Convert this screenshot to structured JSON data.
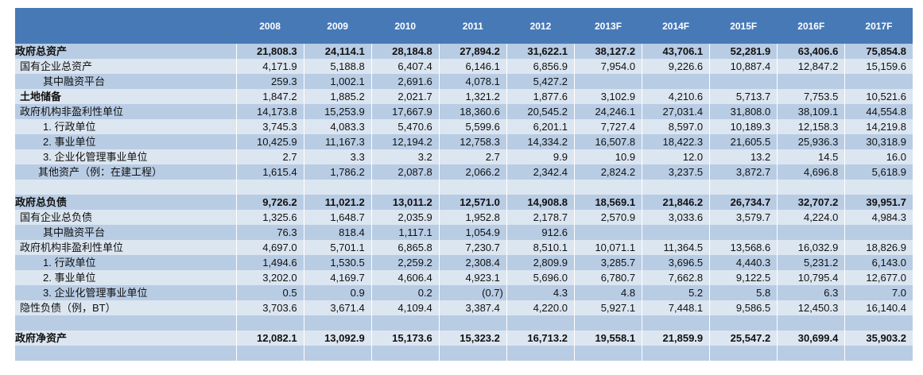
{
  "table": {
    "columns": [
      "2008",
      "2009",
      "2010",
      "2011",
      "2012",
      "2013F",
      "2014F",
      "2015F",
      "2016F",
      "2017F"
    ],
    "rows": [
      {
        "label": "政府总资产",
        "bold": true,
        "indent": 0,
        "values": [
          "21,808.3",
          "24,114.1",
          "28,184.8",
          "27,894.2",
          "31,622.1",
          "38,127.2",
          "43,706.1",
          "52,281.9",
          "63,406.6",
          "75,854.8"
        ]
      },
      {
        "label": "国有企业总资产",
        "indent": 1,
        "values": [
          "4,171.9",
          "5,188.8",
          "6,407.4",
          "6,146.1",
          "6,856.9",
          "7,954.0",
          "9,226.6",
          "10,887.4",
          "12,847.2",
          "15,159.6"
        ]
      },
      {
        "label": "其中融资平台",
        "indent": 2,
        "values": [
          "259.3",
          "1,002.1",
          "2,691.6",
          "4,078.1",
          "5,427.2",
          "",
          "",
          "",
          "",
          ""
        ]
      },
      {
        "label": "土地储备",
        "bold_label": true,
        "indent": 1,
        "values": [
          "1,847.2",
          "1,885.2",
          "2,021.7",
          "1,321.2",
          "1,877.6",
          "3,102.9",
          "4,210.6",
          "5,713.7",
          "7,753.5",
          "10,521.6"
        ]
      },
      {
        "label": "政府机构非盈利性单位",
        "indent": 1,
        "values": [
          "14,173.8",
          "15,253.9",
          "17,667.9",
          "18,360.6",
          "20,545.2",
          "24,246.1",
          "27,031.4",
          "31,808.0",
          "38,109.1",
          "44,554.8"
        ]
      },
      {
        "label": "1. 行政单位",
        "indent": 2,
        "values": [
          "3,745.3",
          "4,083.3",
          "5,470.6",
          "5,599.6",
          "6,201.1",
          "7,727.4",
          "8,597.0",
          "10,189.3",
          "12,158.3",
          "14,219.8"
        ]
      },
      {
        "label": "2. 事业单位",
        "indent": 2,
        "values": [
          "10,425.9",
          "11,167.3",
          "12,194.2",
          "12,758.3",
          "14,334.2",
          "16,507.8",
          "18,422.3",
          "21,605.5",
          "25,936.3",
          "30,318.9"
        ]
      },
      {
        "label": "3. 企业化管理事业单位",
        "indent": 2,
        "values": [
          "2.7",
          "3.3",
          "3.2",
          "2.7",
          "9.9",
          "10.9",
          "12.0",
          "13.2",
          "14.5",
          "16.0"
        ]
      },
      {
        "label": "其他资产（例：在建工程）",
        "indent": 3,
        "values": [
          "1,615.4",
          "1,786.2",
          "2,087.8",
          "2,066.2",
          "2,342.4",
          "2,824.2",
          "3,237.5",
          "3,872.7",
          "4,696.8",
          "5,618.9"
        ]
      },
      {
        "label": "",
        "indent": 0,
        "values": [
          "",
          "",
          "",
          "",
          "",
          "",
          "",
          "",
          "",
          ""
        ]
      },
      {
        "label": "政府总负债",
        "bold": true,
        "indent": 0,
        "values": [
          "9,726.2",
          "11,021.2",
          "13,011.2",
          "12,571.0",
          "14,908.8",
          "18,569.1",
          "21,846.2",
          "26,734.7",
          "32,707.2",
          "39,951.7"
        ]
      },
      {
        "label": "国有企业总负债",
        "indent": 1,
        "values": [
          "1,325.6",
          "1,648.7",
          "2,035.9",
          "1,952.8",
          "2,178.7",
          "2,570.9",
          "3,033.6",
          "3,579.7",
          "4,224.0",
          "4,984.3"
        ]
      },
      {
        "label": "其中融资平台",
        "indent": 2,
        "values": [
          "76.3",
          "818.4",
          "1,117.1",
          "1,054.9",
          "912.6",
          "",
          "",
          "",
          "",
          ""
        ]
      },
      {
        "label": "政府机构非盈利性单位",
        "indent": 1,
        "values": [
          "4,697.0",
          "5,701.1",
          "6,865.8",
          "7,230.7",
          "8,510.1",
          "10,071.1",
          "11,364.5",
          "13,568.6",
          "16,032.9",
          "18,826.9"
        ]
      },
      {
        "label": "1. 行政单位",
        "indent": 2,
        "values": [
          "1,494.6",
          "1,530.5",
          "2,259.2",
          "2,308.4",
          "2,809.9",
          "3,285.7",
          "3,696.5",
          "4,440.3",
          "5,231.2",
          "6,143.0"
        ]
      },
      {
        "label": "2. 事业单位",
        "indent": 2,
        "values": [
          "3,202.0",
          "4,169.7",
          "4,606.4",
          "4,923.1",
          "5,696.0",
          "6,780.7",
          "7,662.8",
          "9,122.5",
          "10,795.4",
          "12,677.0"
        ]
      },
      {
        "label": "3. 企业化管理事业单位",
        "indent": 2,
        "values": [
          "0.5",
          "0.9",
          "0.2",
          "(0.7)",
          "4.3",
          "4.8",
          "5.2",
          "5.8",
          "6.3",
          "7.0"
        ]
      },
      {
        "label": "隐性负债（例，BT）",
        "indent": 1,
        "values": [
          "3,703.6",
          "3,671.4",
          "4,109.4",
          "3,387.4",
          "4,220.0",
          "5,927.1",
          "7,448.1",
          "9,586.5",
          "12,450.3",
          "16,140.4"
        ]
      },
      {
        "label": "",
        "indent": 0,
        "values": [
          "",
          "",
          "",
          "",
          "",
          "",
          "",
          "",
          "",
          ""
        ]
      },
      {
        "label": "政府净资产",
        "bold": true,
        "indent": 0,
        "values": [
          "12,082.1",
          "13,092.9",
          "15,173.6",
          "15,323.2",
          "16,713.2",
          "19,558.1",
          "21,859.9",
          "25,547.2",
          "30,699.4",
          "35,903.2"
        ]
      },
      {
        "label": "",
        "indent": 0,
        "values": [
          "",
          "",
          "",
          "",
          "",
          "",
          "",
          "",
          "",
          ""
        ]
      }
    ]
  },
  "colors": {
    "header": "#4779b7",
    "row_dark": "#b8cce4",
    "row_light": "#dce6f1"
  }
}
